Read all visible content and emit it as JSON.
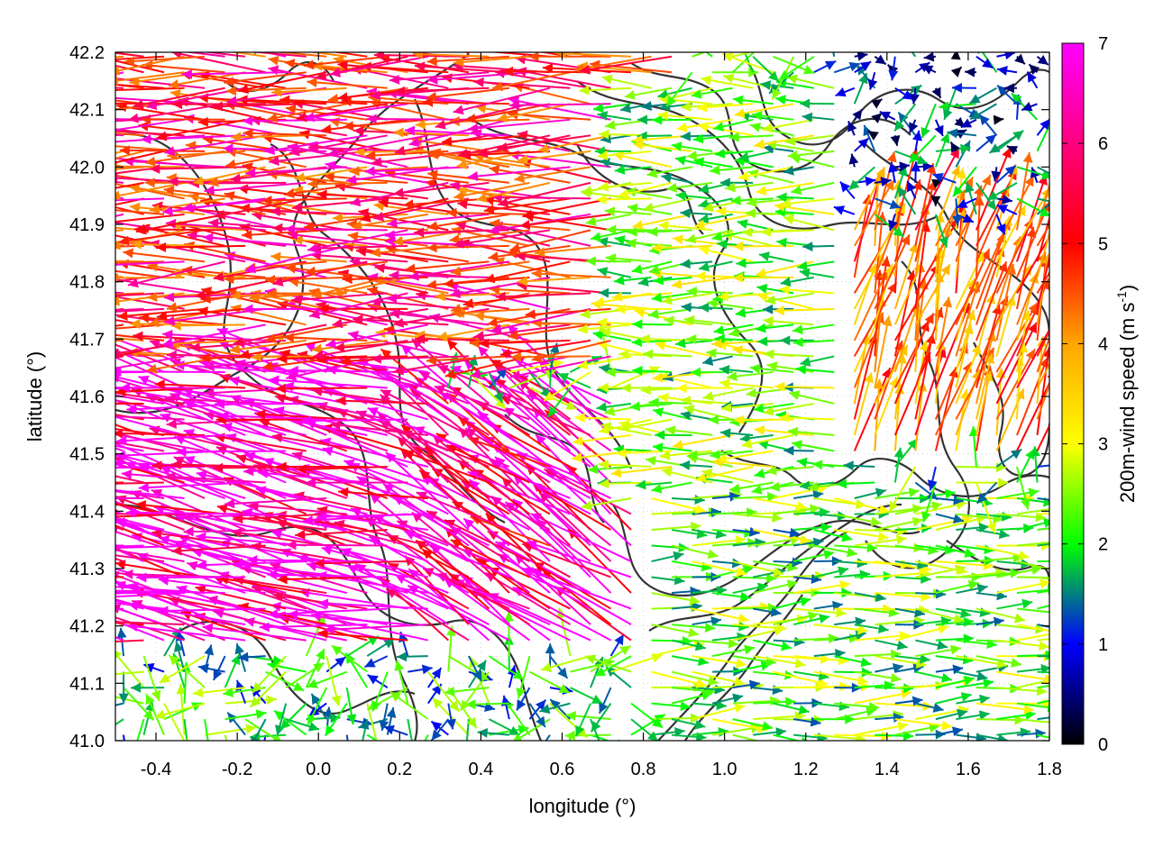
{
  "chart_data": {
    "type": "vector-field",
    "xlabel": "longitude (°)",
    "ylabel": "latitude (°)",
    "colorbar_label": "200m-wind speed (m s",
    "colorbar_label_sup": "-1",
    "colorbar_label_end": ")",
    "xlim": [
      -0.5,
      1.8
    ],
    "ylim": [
      41.0,
      42.2
    ],
    "x_ticks": [
      "-0.4",
      "-0.2",
      "0.0",
      "0.2",
      "0.4",
      "0.6",
      "0.8",
      "1.0",
      "1.2",
      "1.4",
      "1.6",
      "1.8"
    ],
    "y_ticks": [
      "41.0",
      "41.1",
      "41.2",
      "41.3",
      "41.4",
      "41.5",
      "41.6",
      "41.7",
      "41.8",
      "41.9",
      "42.0",
      "42.1",
      "42.2"
    ],
    "colorbar_range": [
      0,
      7
    ],
    "colorbar_ticks": [
      "0",
      "1",
      "2",
      "3",
      "4",
      "5",
      "6",
      "7"
    ],
    "colormap": [
      "#000000",
      "#0000ff",
      "#00ff00",
      "#ffff00",
      "#ffa500",
      "#ff0000",
      "#ff00ff"
    ],
    "grid": true,
    "contour_color": "#333333",
    "regions": [
      {
        "lon": [
          -0.5,
          0.3
        ],
        "lat": [
          41.15,
          41.65
        ],
        "speed": 6.9,
        "direction": "west-northwest"
      },
      {
        "lon": [
          -0.5,
          0.9
        ],
        "lat": [
          41.65,
          42.2
        ],
        "speed": 5.8,
        "direction": "west"
      },
      {
        "lon": [
          0.3,
          0.8
        ],
        "lat": [
          41.15,
          41.6
        ],
        "speed": 6.6,
        "direction": "northwest"
      },
      {
        "lon": [
          0.75,
          1.4
        ],
        "lat": [
          41.4,
          42.15
        ],
        "speed": 2.8,
        "direction": "west"
      },
      {
        "lon": [
          1.3,
          1.8
        ],
        "lat": [
          41.5,
          41.9
        ],
        "speed": 5.0,
        "direction": "north-northeast"
      },
      {
        "lon": [
          1.3,
          1.8
        ],
        "lat": [
          41.9,
          42.2
        ],
        "speed": 1.2,
        "direction": "variable"
      },
      {
        "lon": [
          0.8,
          1.8
        ],
        "lat": [
          41.0,
          41.45
        ],
        "speed": 2.6,
        "direction": "east"
      },
      {
        "lon": [
          -0.5,
          0.7
        ],
        "lat": [
          41.0,
          41.15
        ],
        "speed": 2.2,
        "direction": "variable"
      }
    ]
  }
}
